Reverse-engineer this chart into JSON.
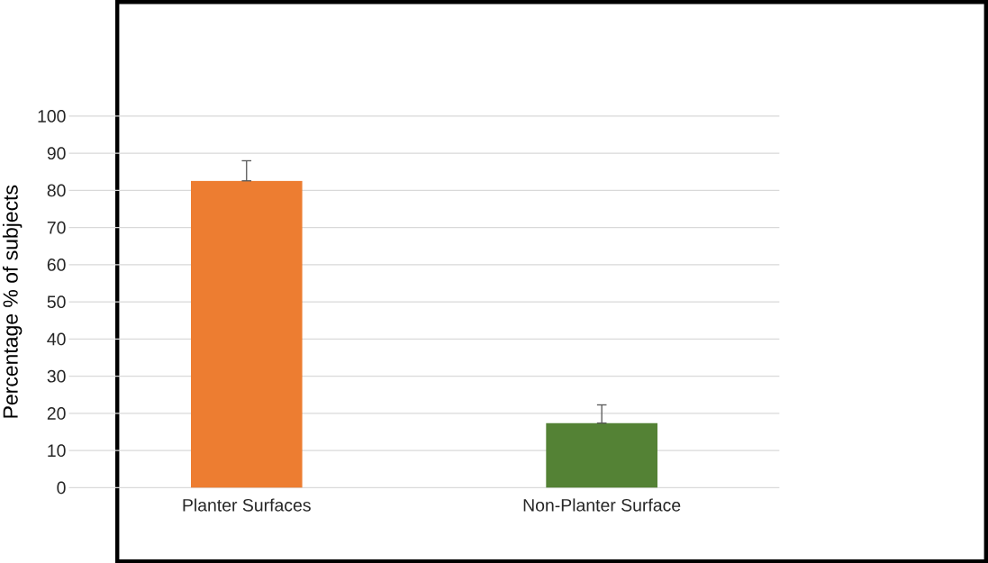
{
  "chart_data": {
    "type": "bar",
    "ylabel": "Percentage % of subjects",
    "categories": [
      "Planter Surfaces",
      "Non-Planter Surface"
    ],
    "values": [
      82.6,
      17.4
    ],
    "colors": [
      "#ed7d31",
      "#548235"
    ],
    "errors": [
      [
        82.6,
        88.0
      ],
      [
        17.4,
        22.3
      ]
    ],
    "ylim": [
      0,
      100
    ],
    "yticks": [
      0,
      10,
      20,
      30,
      40,
      50,
      60,
      70,
      80,
      90,
      100
    ],
    "grid": "y"
  }
}
